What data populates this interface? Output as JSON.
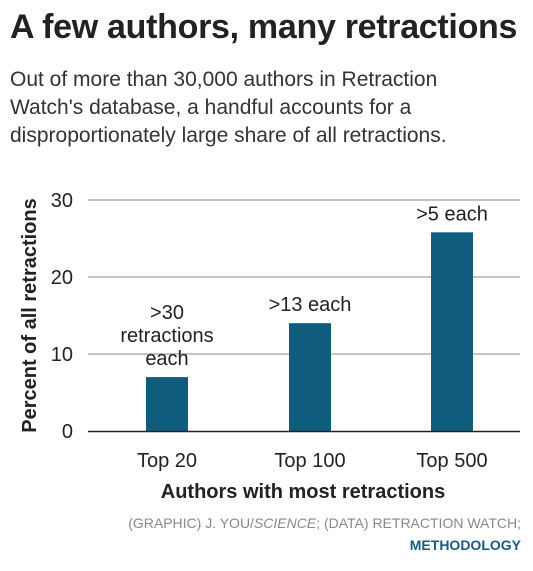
{
  "header": {
    "title": "A few authors, many retractions",
    "subtitle": "Out of more than 30,000 authors in Retraction Watch's database, a handful accounts for a disproportionately large share of all retractions."
  },
  "chart_data": {
    "type": "bar",
    "title": "A few authors, many retractions",
    "xlabel": "Authors with most retractions",
    "ylabel": "Percent of all retractions",
    "categories": [
      "Top 20",
      "Top 100",
      "Top 500"
    ],
    "values": [
      7,
      14,
      25.8
    ],
    "annotations": [
      ">30 retractions each",
      ">13 each",
      ">5 each"
    ],
    "y_ticks": [
      "0",
      "10",
      "20",
      "30"
    ],
    "ylim": [
      0,
      30
    ],
    "grid": true,
    "bar_color": "#0f5c7e"
  },
  "footer": {
    "credit_graphic": "(GRAPHIC) J. YOU/",
    "credit_source_name": "SCIENCE",
    "credit_data": "; (DATA) RETRACTION WATCH;",
    "methodology_link": "METHODOLOGY"
  }
}
